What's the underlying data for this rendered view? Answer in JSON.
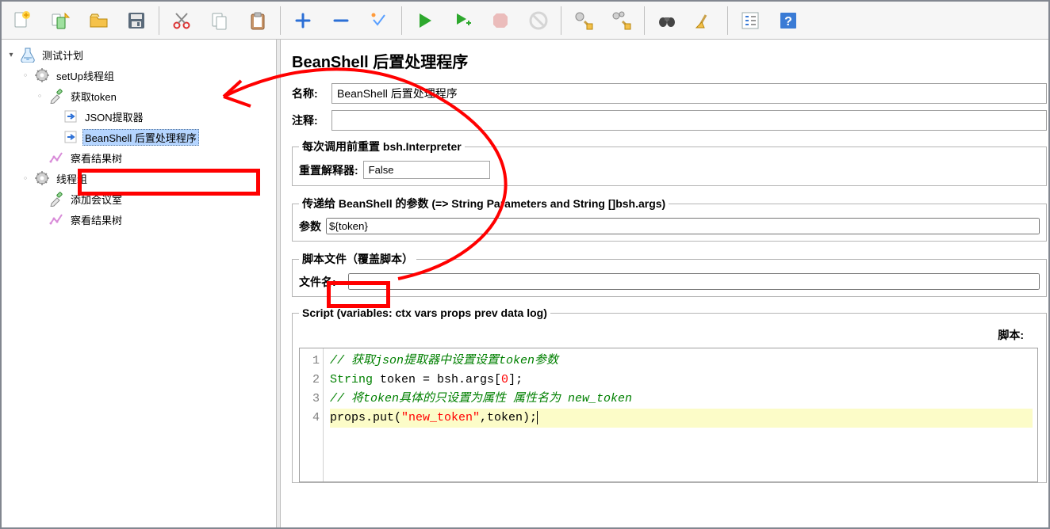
{
  "colors": {
    "app_border": "#828790",
    "panel_bg": "#ffffff",
    "toolbar_bg": "#f6f6f6",
    "tree_selection": "#b5d5ff",
    "highlight_red": "#ff0000",
    "code_current_line": "#fcfcc8",
    "comment_green": "#008000",
    "string_red": "#ff0000"
  },
  "tree": {
    "root": "测试计划",
    "setup_group": "setUp线程组",
    "get_token": "获取token",
    "json_extractor": "JSON提取器",
    "beanshell_post": "BeanShell 后置处理程序",
    "view_results_1": "察看结果树",
    "thread_group": "线程组",
    "add_meeting": "添加会议室",
    "view_results_2": "察看结果树"
  },
  "editor": {
    "title": "BeanShell 后置处理程序",
    "name_label": "名称:",
    "name_value": "BeanShell 后置处理程序",
    "comment_label": "注释:",
    "comment_value": "",
    "reset_legend": "每次调用前重置 bsh.Interpreter",
    "reset_label": "重置解释器:",
    "reset_value": "False",
    "params_legend": "传递给 BeanShell 的参数 (=> String Parameters and String []bsh.args)",
    "params_label": "参数",
    "params_value": "${token}",
    "file_legend": "脚本文件（覆盖脚本）",
    "file_label": "文件名:",
    "file_value": "",
    "script_legend": "Script (variables: ctx vars props prev data log)",
    "script_label": "脚本:",
    "code": {
      "lines": [
        {
          "n": 1,
          "segments": [
            {
              "cls": "tk-com",
              "t": "// 获取json提取器中设置设置token参数"
            }
          ]
        },
        {
          "n": 2,
          "segments": [
            {
              "cls": "tk-kw",
              "t": "String"
            },
            {
              "cls": "",
              "t": " token = bsh.args["
            },
            {
              "cls": "tk-num",
              "t": "0"
            },
            {
              "cls": "",
              "t": "];"
            }
          ]
        },
        {
          "n": 3,
          "segments": [
            {
              "cls": "tk-com",
              "t": "// 将token具体的只设置为属性 属性名为 new_token"
            }
          ]
        },
        {
          "n": 4,
          "current": true,
          "segments": [
            {
              "cls": "",
              "t": "props.put("
            },
            {
              "cls": "tk-str",
              "t": "\"new_token\""
            },
            {
              "cls": "",
              "t": ",token);"
            }
          ]
        }
      ]
    }
  }
}
